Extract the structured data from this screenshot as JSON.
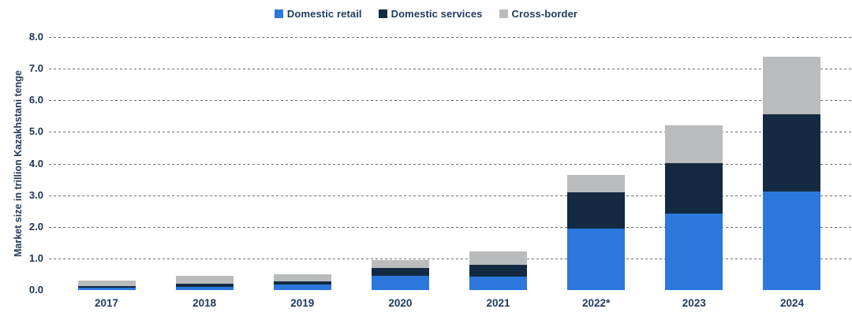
{
  "chart_data": {
    "type": "bar",
    "stacked": true,
    "title": "",
    "xlabel": "",
    "ylabel": "Market size in trillion Kazakhstani tenge",
    "ylim": [
      0,
      8
    ],
    "ytick_labels": [
      "8.0",
      "7.0",
      "6.0",
      "5.0",
      "4.0",
      "3.0",
      "2.0",
      "1.0",
      "0.0"
    ],
    "grid": "horizontal-dotted",
    "legend_position": "top-center",
    "categories": [
      "2017",
      "2018",
      "2019",
      "2020",
      "2021",
      "2022*",
      "2023",
      "2024"
    ],
    "series": [
      {
        "name": "Domestic retail",
        "color": "#2c77dc",
        "values": [
          0.08,
          0.11,
          0.18,
          0.46,
          0.42,
          1.95,
          2.42,
          3.12
        ]
      },
      {
        "name": "Domestic services",
        "color": "#132a42",
        "values": [
          0.05,
          0.1,
          0.1,
          0.23,
          0.38,
          1.15,
          1.6,
          2.45
        ]
      },
      {
        "name": "Cross-border",
        "color": "#b9bbbc",
        "values": [
          0.18,
          0.23,
          0.23,
          0.25,
          0.42,
          0.55,
          1.2,
          1.82
        ]
      }
    ],
    "totals": [
      0.31,
      0.44,
      0.51,
      0.94,
      1.22,
      3.65,
      5.22,
      7.39
    ]
  },
  "colors": {
    "background": "#ffffff",
    "text": "#1d3a5f",
    "gridline": "#6e6e6e"
  }
}
